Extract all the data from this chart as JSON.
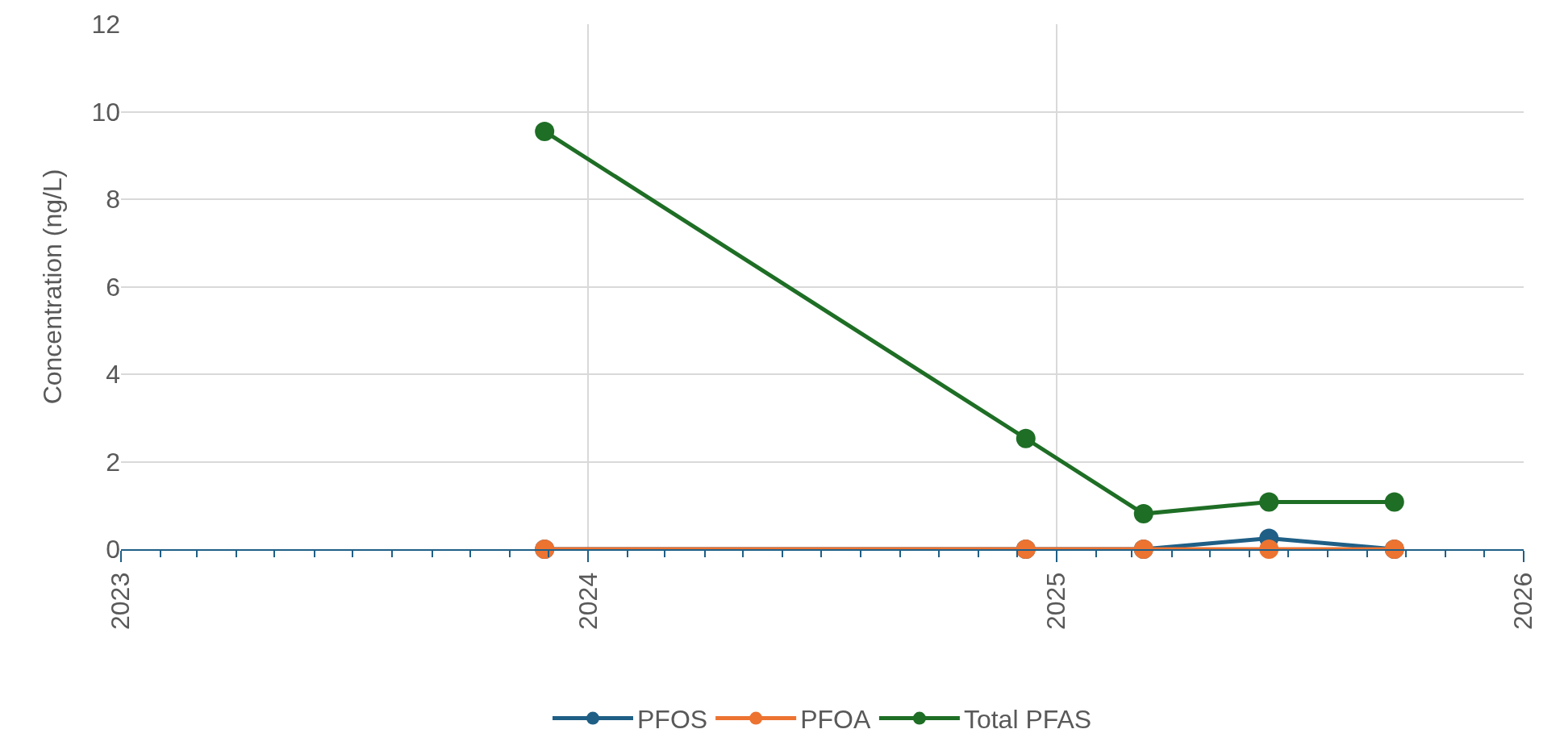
{
  "chart_data": {
    "type": "line",
    "ylabel": "Concentration (ng/L)",
    "x": [
      "2023-11-28",
      "2024-12-08",
      "2025-03-10",
      "2025-06-16",
      "2025-09-22"
    ],
    "series": [
      {
        "name": "PFOS",
        "color": "#1f5f86",
        "values": [
          0,
          0,
          0,
          0.25,
          0
        ]
      },
      {
        "name": "PFOA",
        "color": "#ed7331",
        "values": [
          0,
          0,
          0,
          0,
          0
        ]
      },
      {
        "name": "Total PFAS",
        "color": "#1e6e25",
        "values": [
          9.55,
          2.53,
          0.81,
          1.08,
          1.08
        ]
      }
    ],
    "xlim": [
      "2023",
      "2026"
    ],
    "xticks": [
      "2023",
      "2024",
      "2025",
      "2026"
    ],
    "ylim": [
      0,
      12
    ],
    "yticks": [
      0,
      2,
      4,
      6,
      8,
      10,
      12
    ],
    "grid": true,
    "legend": "bottom",
    "marker": "circle",
    "line_style": "solid"
  }
}
